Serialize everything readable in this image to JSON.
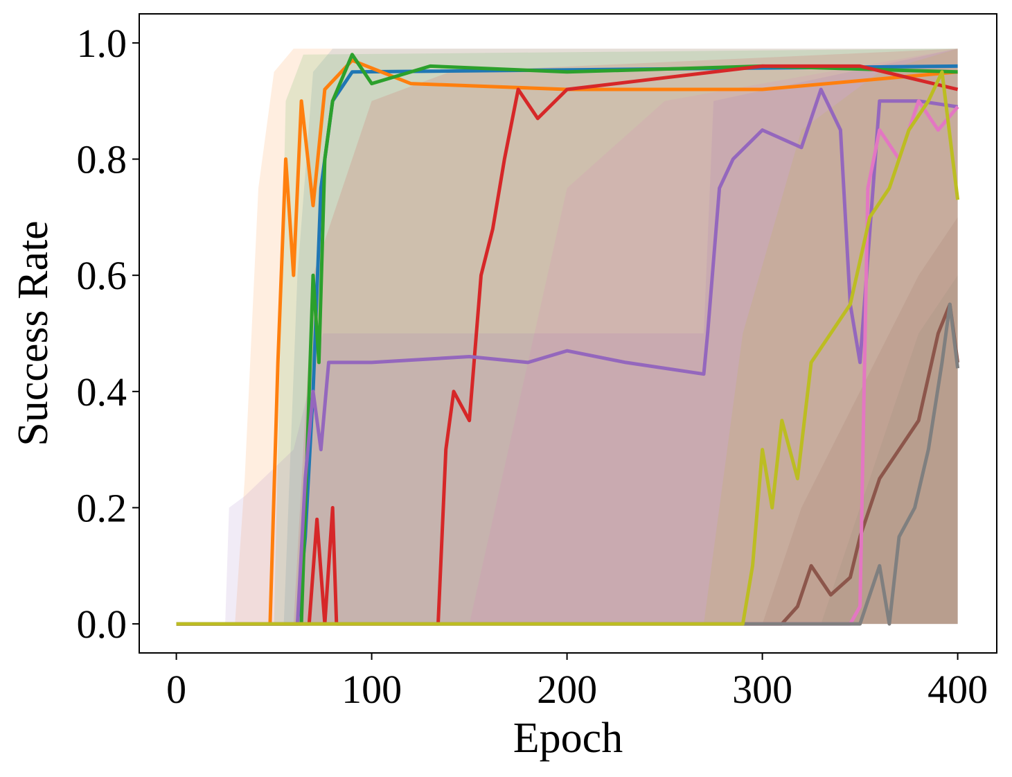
{
  "chart_data": {
    "type": "line",
    "title": "",
    "xlabel": "Epoch",
    "ylabel": "Success Rate",
    "xlim": [
      -19,
      420
    ],
    "ylim": [
      -0.05,
      1.05
    ],
    "xticks": [
      0,
      100,
      200,
      300,
      400
    ],
    "xtick_labels": [
      "0",
      "100",
      "200",
      "300",
      "400"
    ],
    "yticks": [
      0.0,
      0.2,
      0.4,
      0.6,
      0.8,
      1.0
    ],
    "ytick_labels": [
      "0.0",
      "0.2",
      "0.4",
      "0.6",
      "0.8",
      "1.0"
    ],
    "grid": false,
    "legend": false,
    "bands_shaded": true,
    "series": [
      {
        "color": "#1f77b4",
        "line": [
          [
            0,
            0
          ],
          [
            62,
            0
          ],
          [
            66,
            0.15
          ],
          [
            70,
            0.4
          ],
          [
            74,
            0.75
          ],
          [
            80,
            0.9
          ],
          [
            90,
            0.95
          ],
          [
            400,
            0.96
          ]
        ],
        "band_upper": [
          [
            0,
            0
          ],
          [
            55,
            0
          ],
          [
            62,
            0.6
          ],
          [
            70,
            0.95
          ],
          [
            80,
            0.99
          ],
          [
            400,
            0.99
          ]
        ]
      },
      {
        "color": "#ff7f0e",
        "line": [
          [
            0,
            0
          ],
          [
            48,
            0
          ],
          [
            52,
            0.45
          ],
          [
            56,
            0.8
          ],
          [
            60,
            0.6
          ],
          [
            64,
            0.9
          ],
          [
            70,
            0.72
          ],
          [
            76,
            0.92
          ],
          [
            90,
            0.97
          ],
          [
            120,
            0.93
          ],
          [
            200,
            0.92
          ],
          [
            300,
            0.92
          ],
          [
            400,
            0.95
          ]
        ],
        "band_upper": [
          [
            0,
            0
          ],
          [
            30,
            0
          ],
          [
            35,
            0.25
          ],
          [
            42,
            0.75
          ],
          [
            50,
            0.95
          ],
          [
            60,
            0.99
          ],
          [
            400,
            0.99
          ]
        ]
      },
      {
        "color": "#2ca02c",
        "line": [
          [
            0,
            0
          ],
          [
            64,
            0
          ],
          [
            67,
            0.3
          ],
          [
            70,
            0.6
          ],
          [
            73,
            0.45
          ],
          [
            76,
            0.8
          ],
          [
            80,
            0.9
          ],
          [
            90,
            0.98
          ],
          [
            100,
            0.93
          ],
          [
            130,
            0.96
          ],
          [
            200,
            0.95
          ],
          [
            300,
            0.96
          ],
          [
            400,
            0.95
          ]
        ],
        "band_upper": [
          [
            0,
            0
          ],
          [
            50,
            0
          ],
          [
            56,
            0.9
          ],
          [
            65,
            0.98
          ],
          [
            400,
            0.99
          ]
        ]
      },
      {
        "color": "#d62728",
        "line": [
          [
            0,
            0
          ],
          [
            68,
            0
          ],
          [
            72,
            0.18
          ],
          [
            76,
            0.0
          ],
          [
            80,
            0.2
          ],
          [
            82,
            0
          ],
          [
            134,
            0
          ],
          [
            138,
            0.3
          ],
          [
            142,
            0.4
          ],
          [
            150,
            0.35
          ],
          [
            156,
            0.6
          ],
          [
            162,
            0.68
          ],
          [
            168,
            0.8
          ],
          [
            175,
            0.92
          ],
          [
            185,
            0.87
          ],
          [
            200,
            0.92
          ],
          [
            250,
            0.94
          ],
          [
            300,
            0.96
          ],
          [
            350,
            0.96
          ],
          [
            400,
            0.92
          ]
        ],
        "band_upper": [
          [
            0,
            0
          ],
          [
            60,
            0
          ],
          [
            70,
            0.6
          ],
          [
            100,
            0.9
          ],
          [
            140,
            0.95
          ],
          [
            400,
            0.99
          ]
        ]
      },
      {
        "color": "#9467bd",
        "line": [
          [
            0,
            0
          ],
          [
            62,
            0
          ],
          [
            66,
            0.25
          ],
          [
            70,
            0.4
          ],
          [
            74,
            0.3
          ],
          [
            78,
            0.45
          ],
          [
            100,
            0.45
          ],
          [
            150,
            0.46
          ],
          [
            180,
            0.45
          ],
          [
            200,
            0.47
          ],
          [
            230,
            0.45
          ],
          [
            270,
            0.43
          ],
          [
            272,
            0.5
          ],
          [
            278,
            0.75
          ],
          [
            285,
            0.8
          ],
          [
            300,
            0.85
          ],
          [
            320,
            0.82
          ],
          [
            330,
            0.92
          ],
          [
            340,
            0.85
          ],
          [
            345,
            0.55
          ],
          [
            350,
            0.45
          ],
          [
            360,
            0.9
          ],
          [
            380,
            0.9
          ],
          [
            400,
            0.89
          ]
        ],
        "band_upper": [
          [
            0,
            0
          ],
          [
            25,
            0
          ],
          [
            27,
            0.2
          ],
          [
            35,
            0.22
          ],
          [
            60,
            0.3
          ],
          [
            75,
            0.5
          ],
          [
            100,
            0.5
          ],
          [
            270,
            0.5
          ],
          [
            275,
            0.9
          ],
          [
            400,
            0.99
          ]
        ]
      },
      {
        "color": "#8c564b",
        "line": [
          [
            0,
            0
          ],
          [
            310,
            0
          ],
          [
            318,
            0.03
          ],
          [
            325,
            0.1
          ],
          [
            335,
            0.05
          ],
          [
            345,
            0.08
          ],
          [
            350,
            0.15
          ],
          [
            360,
            0.25
          ],
          [
            370,
            0.3
          ],
          [
            380,
            0.35
          ],
          [
            390,
            0.5
          ],
          [
            396,
            0.55
          ],
          [
            400,
            0.45
          ]
        ],
        "band_upper": [
          [
            0,
            0
          ],
          [
            300,
            0
          ],
          [
            320,
            0.2
          ],
          [
            350,
            0.4
          ],
          [
            380,
            0.6
          ],
          [
            400,
            0.7
          ]
        ]
      },
      {
        "color": "#e377c2",
        "line": [
          [
            0,
            0
          ],
          [
            345,
            0
          ],
          [
            350,
            0.03
          ],
          [
            354,
            0.75
          ],
          [
            360,
            0.85
          ],
          [
            370,
            0.8
          ],
          [
            380,
            0.9
          ],
          [
            390,
            0.85
          ],
          [
            400,
            0.89
          ]
        ],
        "band_upper": [
          [
            0,
            0
          ],
          [
            150,
            0
          ],
          [
            170,
            0.3
          ],
          [
            200,
            0.75
          ],
          [
            250,
            0.9
          ],
          [
            400,
            0.99
          ]
        ]
      },
      {
        "color": "#7f7f7f",
        "line": [
          [
            0,
            0
          ],
          [
            350,
            0
          ],
          [
            355,
            0.05
          ],
          [
            360,
            0.1
          ],
          [
            365,
            0.0
          ],
          [
            370,
            0.15
          ],
          [
            378,
            0.2
          ],
          [
            385,
            0.3
          ],
          [
            392,
            0.45
          ],
          [
            396,
            0.55
          ],
          [
            400,
            0.44
          ]
        ],
        "band_upper": [
          [
            0,
            0
          ],
          [
            330,
            0
          ],
          [
            350,
            0.2
          ],
          [
            380,
            0.5
          ],
          [
            400,
            0.6
          ]
        ]
      },
      {
        "color": "#bcbd22",
        "line": [
          [
            0,
            0
          ],
          [
            290,
            0
          ],
          [
            295,
            0.1
          ],
          [
            300,
            0.3
          ],
          [
            305,
            0.2
          ],
          [
            310,
            0.35
          ],
          [
            318,
            0.25
          ],
          [
            325,
            0.45
          ],
          [
            335,
            0.5
          ],
          [
            345,
            0.55
          ],
          [
            355,
            0.7
          ],
          [
            365,
            0.75
          ],
          [
            375,
            0.85
          ],
          [
            385,
            0.9
          ],
          [
            392,
            0.95
          ],
          [
            400,
            0.73
          ]
        ],
        "band_upper": [
          [
            0,
            0
          ],
          [
            270,
            0
          ],
          [
            290,
            0.5
          ],
          [
            320,
            0.85
          ],
          [
            360,
            0.95
          ],
          [
            400,
            0.99
          ]
        ]
      }
    ]
  }
}
